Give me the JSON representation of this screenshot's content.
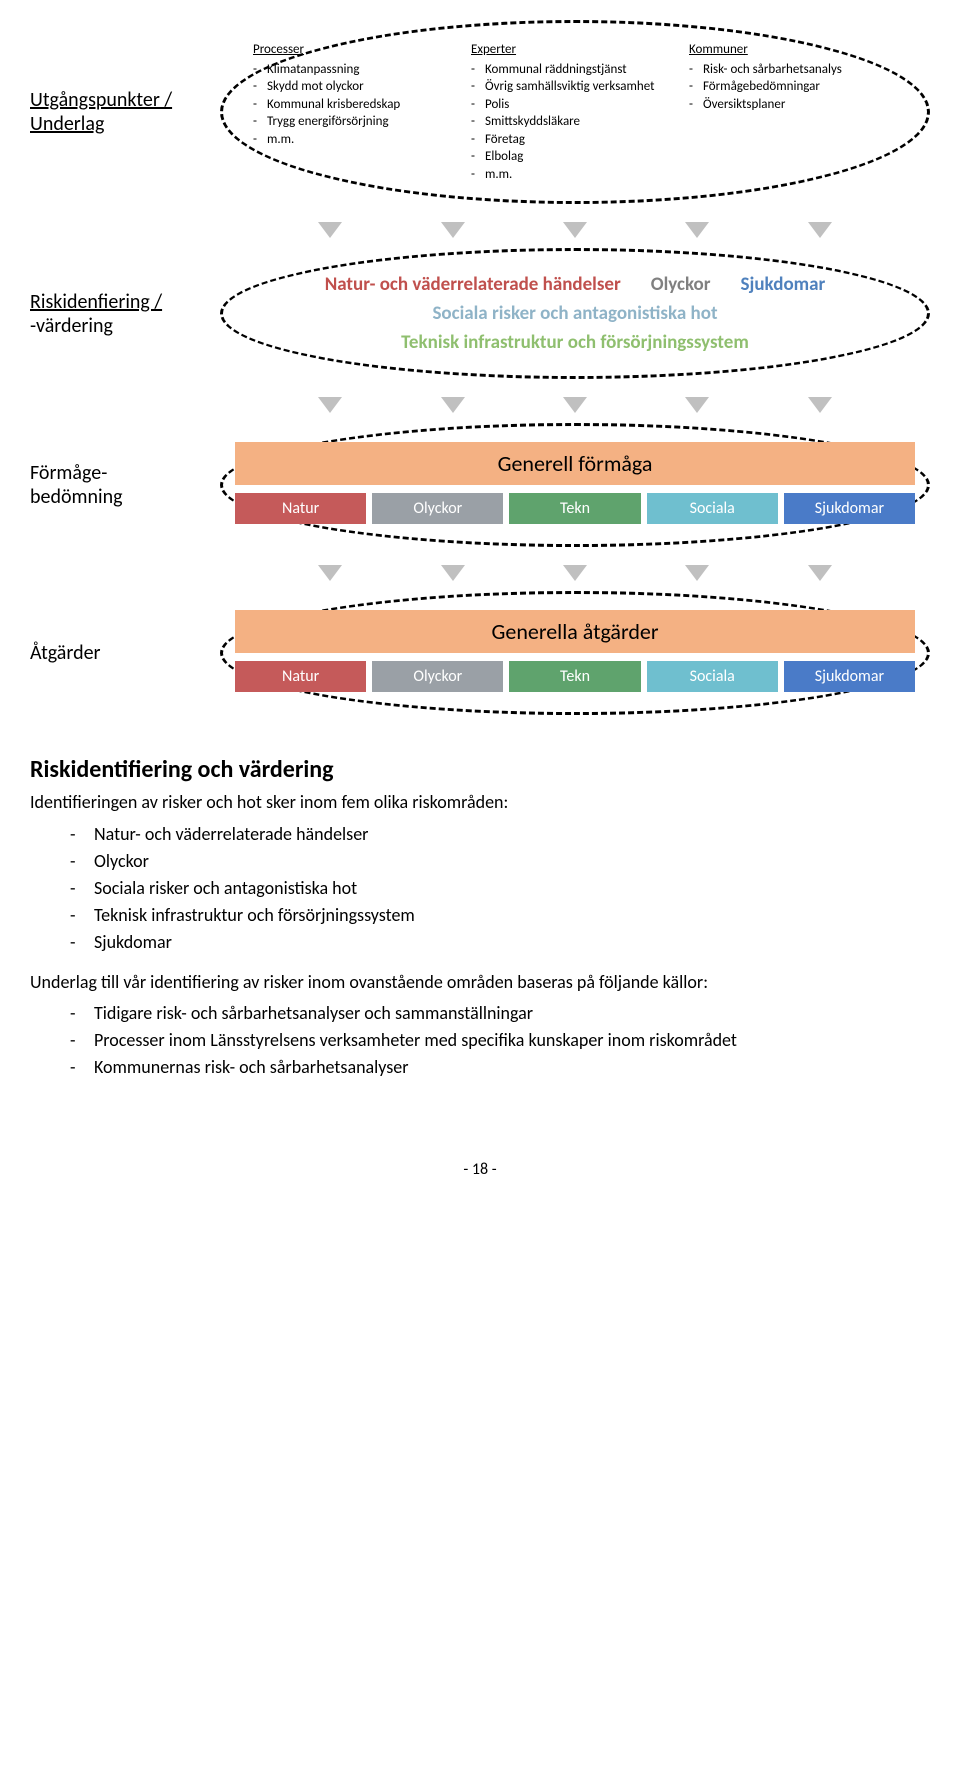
{
  "colors": {
    "arrow": "#c0c0c0",
    "bigbar_bg": "#f4b183",
    "bigbar_text": "#000000",
    "chip_natur": "#c55a5a",
    "chip_olyckor": "#9aa0a6",
    "chip_tekn": "#5fa36d",
    "chip_sociala": "#6fbfcf",
    "chip_sjukdomar": "#4a7bc8",
    "risk_natur": "#c0504d",
    "risk_olyckor": "#808080",
    "risk_sociala": "#8fb3c7",
    "risk_tekn": "#8fbf6f",
    "risk_sjuk": "#4f81bd"
  },
  "stages": {
    "s1": {
      "label_l1": "Utgångspunkter /",
      "label_l2": "Underlag",
      "col1": {
        "title": "Processer",
        "items": [
          "Klimatanpassning",
          "Skydd mot olyckor",
          "Kommunal krisberedskap",
          "Trygg energiförsörjning",
          "m.m."
        ]
      },
      "col2": {
        "title": "Experter",
        "items": [
          "Kommunal räddningstjänst",
          "Övrig samhällsviktig verksamhet",
          "Polis",
          "Smittskyddsläkare",
          "Företag",
          "Elbolag",
          "m.m."
        ]
      },
      "col3": {
        "title": "Kommuner",
        "items": [
          "Risk- och sårbarhetsanalys",
          "Förmågebedömningar",
          "Översiktsplaner"
        ]
      }
    },
    "s2": {
      "label_l1": "Riskidenfiering /",
      "label_l2": "-värdering",
      "r1": "Natur- och väderrelaterade händelser",
      "r2": "Olyckor",
      "r3": "Sociala risker och antagonistiska hot",
      "r4": "Teknisk infrastruktur och försörjningssystem",
      "r5": "Sjukdomar"
    },
    "s3": {
      "label_l1": "Förmåge-",
      "label_l2": "bedömning",
      "big": "Generell förmåga",
      "chips": [
        "Natur",
        "Olyckor",
        "Tekn",
        "Sociala",
        "Sjukdomar"
      ]
    },
    "s4": {
      "label": "Åtgärder",
      "big": "Generella åtgärder",
      "chips": [
        "Natur",
        "Olyckor",
        "Tekn",
        "Sociala",
        "Sjukdomar"
      ]
    }
  },
  "text": {
    "heading": "Riskidentifiering och värdering",
    "intro": "Identifieringen av risker och hot sker inom fem olika riskområden:",
    "list1": [
      "Natur- och väderrelaterade händelser",
      "Olyckor",
      "Sociala risker och antagonistiska hot",
      "Teknisk infrastruktur och försörjningssystem",
      "Sjukdomar"
    ],
    "para2": "Underlag till vår identifiering av risker inom ovanstående områden baseras på följande källor:",
    "list2": [
      "Tidigare risk- och sårbarhetsanalyser och sammanställningar",
      "Processer inom Länsstyrelsens verksamheter med specifika kunskaper inom riskområdet",
      "Kommunernas risk- och sårbarhetsanalyser"
    ],
    "pagenum": "- 18 -"
  }
}
